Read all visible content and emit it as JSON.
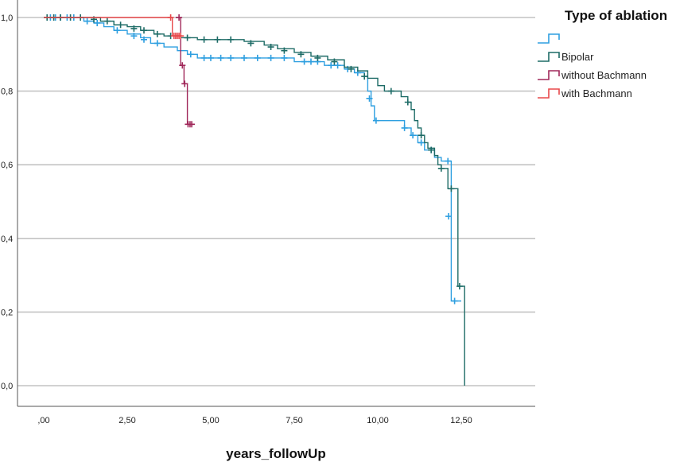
{
  "chart_data": {
    "type": "line",
    "subtype": "kaplan-meier-step",
    "xlabel": "years_followUp",
    "ylabel": "",
    "xlim": [
      -0.6,
      14.6
    ],
    "ylim": [
      -0.05,
      1.0
    ],
    "x_ticks": [
      0,
      2.5,
      5,
      7.5,
      10,
      12.5
    ],
    "x_tick_labels": [
      ",00",
      "2,50",
      "5,00",
      "7,50",
      "10,00",
      "12,50"
    ],
    "y_ticks": [
      1.0,
      0.8,
      0.6,
      0.4,
      0.2,
      0.0
    ],
    "y_tick_labels": [
      "1,0",
      "0,8",
      "0,6",
      "0,4",
      "0,2",
      "0,0"
    ],
    "grid": "horizontal",
    "legend": {
      "title": "Type of ablation",
      "placement": "right",
      "entries": [
        "",
        "Bipolar",
        "without Bachmann",
        "with Bachmann"
      ]
    },
    "series": [
      {
        "name": "",
        "color": "#2e9fe0",
        "points": [
          [
            0,
            1.0
          ],
          [
            1.0,
            1.0
          ],
          [
            1.2,
            0.99
          ],
          [
            1.5,
            0.985
          ],
          [
            1.8,
            0.975
          ],
          [
            2.1,
            0.965
          ],
          [
            2.5,
            0.955
          ],
          [
            2.9,
            0.945
          ],
          [
            3.2,
            0.93
          ],
          [
            3.6,
            0.92
          ],
          [
            4.0,
            0.91
          ],
          [
            4.3,
            0.9
          ],
          [
            4.6,
            0.89
          ],
          [
            7.5,
            0.88
          ],
          [
            8.4,
            0.87
          ],
          [
            9.0,
            0.86
          ],
          [
            9.3,
            0.85
          ],
          [
            9.6,
            0.84
          ],
          [
            9.7,
            0.8
          ],
          [
            9.8,
            0.76
          ],
          [
            9.9,
            0.72
          ],
          [
            10.6,
            0.72
          ],
          [
            10.8,
            0.7
          ],
          [
            11.0,
            0.68
          ],
          [
            11.2,
            0.66
          ],
          [
            11.4,
            0.64
          ],
          [
            11.7,
            0.62
          ],
          [
            11.9,
            0.61
          ],
          [
            12.15,
            0.61
          ],
          [
            12.2,
            0.23
          ],
          [
            12.5,
            0.23
          ]
        ],
        "censored": [
          [
            0.2,
            1.0
          ],
          [
            0.35,
            1.0
          ],
          [
            0.5,
            1.0
          ],
          [
            0.7,
            1.0
          ],
          [
            0.9,
            1.0
          ],
          [
            1.3,
            0.99
          ],
          [
            1.6,
            0.985
          ],
          [
            2.2,
            0.965
          ],
          [
            2.7,
            0.95
          ],
          [
            3.0,
            0.94
          ],
          [
            3.4,
            0.93
          ],
          [
            4.4,
            0.9
          ],
          [
            4.8,
            0.89
          ],
          [
            5.0,
            0.89
          ],
          [
            5.3,
            0.89
          ],
          [
            5.6,
            0.89
          ],
          [
            6.0,
            0.89
          ],
          [
            6.4,
            0.89
          ],
          [
            6.8,
            0.89
          ],
          [
            7.2,
            0.89
          ],
          [
            7.8,
            0.88
          ],
          [
            8.0,
            0.88
          ],
          [
            8.2,
            0.88
          ],
          [
            8.6,
            0.87
          ],
          [
            8.8,
            0.87
          ],
          [
            9.1,
            0.86
          ],
          [
            9.4,
            0.85
          ],
          [
            9.75,
            0.78
          ],
          [
            9.95,
            0.72
          ],
          [
            10.8,
            0.7
          ],
          [
            11.05,
            0.68
          ],
          [
            11.3,
            0.66
          ],
          [
            11.6,
            0.64
          ],
          [
            12.1,
            0.61
          ],
          [
            12.12,
            0.46
          ],
          [
            12.3,
            0.23
          ]
        ]
      },
      {
        "name": "Bipolar",
        "color": "#1d6b66",
        "points": [
          [
            0,
            1.0
          ],
          [
            1.3,
            1.0
          ],
          [
            1.7,
            0.99
          ],
          [
            2.1,
            0.98
          ],
          [
            2.5,
            0.975
          ],
          [
            2.9,
            0.965
          ],
          [
            3.3,
            0.955
          ],
          [
            3.6,
            0.95
          ],
          [
            4.1,
            0.945
          ],
          [
            4.6,
            0.94
          ],
          [
            6.0,
            0.935
          ],
          [
            6.6,
            0.925
          ],
          [
            7.0,
            0.915
          ],
          [
            7.5,
            0.905
          ],
          [
            8.0,
            0.895
          ],
          [
            8.5,
            0.885
          ],
          [
            9.0,
            0.865
          ],
          [
            9.4,
            0.855
          ],
          [
            9.7,
            0.835
          ],
          [
            10.0,
            0.815
          ],
          [
            10.2,
            0.8
          ],
          [
            10.6,
            0.8
          ],
          [
            10.7,
            0.785
          ],
          [
            10.9,
            0.77
          ],
          [
            11.0,
            0.75
          ],
          [
            11.1,
            0.72
          ],
          [
            11.2,
            0.7
          ],
          [
            11.3,
            0.68
          ],
          [
            11.4,
            0.66
          ],
          [
            11.5,
            0.645
          ],
          [
            11.7,
            0.625
          ],
          [
            11.8,
            0.6
          ],
          [
            11.9,
            0.59
          ],
          [
            12.05,
            0.59
          ],
          [
            12.1,
            0.535
          ],
          [
            12.35,
            0.535
          ],
          [
            12.4,
            0.27
          ],
          [
            12.55,
            0.27
          ],
          [
            12.6,
            0.0
          ]
        ],
        "censored": [
          [
            0.1,
            1.0
          ],
          [
            0.3,
            1.0
          ],
          [
            0.5,
            1.0
          ],
          [
            0.8,
            1.0
          ],
          [
            1.1,
            1.0
          ],
          [
            1.5,
            0.995
          ],
          [
            1.9,
            0.99
          ],
          [
            2.3,
            0.98
          ],
          [
            2.7,
            0.97
          ],
          [
            3.0,
            0.965
          ],
          [
            3.4,
            0.955
          ],
          [
            3.8,
            0.95
          ],
          [
            4.3,
            0.945
          ],
          [
            4.8,
            0.94
          ],
          [
            5.2,
            0.94
          ],
          [
            5.6,
            0.94
          ],
          [
            6.2,
            0.93
          ],
          [
            6.8,
            0.92
          ],
          [
            7.2,
            0.91
          ],
          [
            7.7,
            0.9
          ],
          [
            8.2,
            0.89
          ],
          [
            8.7,
            0.88
          ],
          [
            9.2,
            0.86
          ],
          [
            9.6,
            0.84
          ],
          [
            10.4,
            0.8
          ],
          [
            10.9,
            0.77
          ],
          [
            11.3,
            0.68
          ],
          [
            11.6,
            0.64
          ],
          [
            11.9,
            0.59
          ],
          [
            12.2,
            0.535
          ],
          [
            12.45,
            0.27
          ]
        ]
      },
      {
        "name": "without Bachmann",
        "color": "#a0285a",
        "points": [
          [
            3.95,
            1.0
          ],
          [
            4.05,
            1.0
          ],
          [
            4.1,
            0.87
          ],
          [
            4.2,
            0.82
          ],
          [
            4.3,
            0.71
          ],
          [
            4.45,
            0.71
          ]
        ],
        "censored": [
          [
            4.05,
            1.0
          ],
          [
            4.15,
            0.87
          ],
          [
            4.22,
            0.82
          ],
          [
            4.32,
            0.71
          ],
          [
            4.38,
            0.71
          ],
          [
            4.43,
            0.71
          ]
        ]
      },
      {
        "name": "with Bachmann",
        "color": "#e8484a",
        "points": [
          [
            0,
            1.0
          ],
          [
            3.8,
            1.0
          ],
          [
            3.85,
            0.95
          ],
          [
            4.15,
            0.95
          ]
        ],
        "censored": [
          [
            3.8,
            1.0
          ],
          [
            3.9,
            0.95
          ],
          [
            3.95,
            0.95
          ],
          [
            4.0,
            0.95
          ],
          [
            4.05,
            0.95
          ],
          [
            4.1,
            0.95
          ]
        ]
      }
    ]
  }
}
